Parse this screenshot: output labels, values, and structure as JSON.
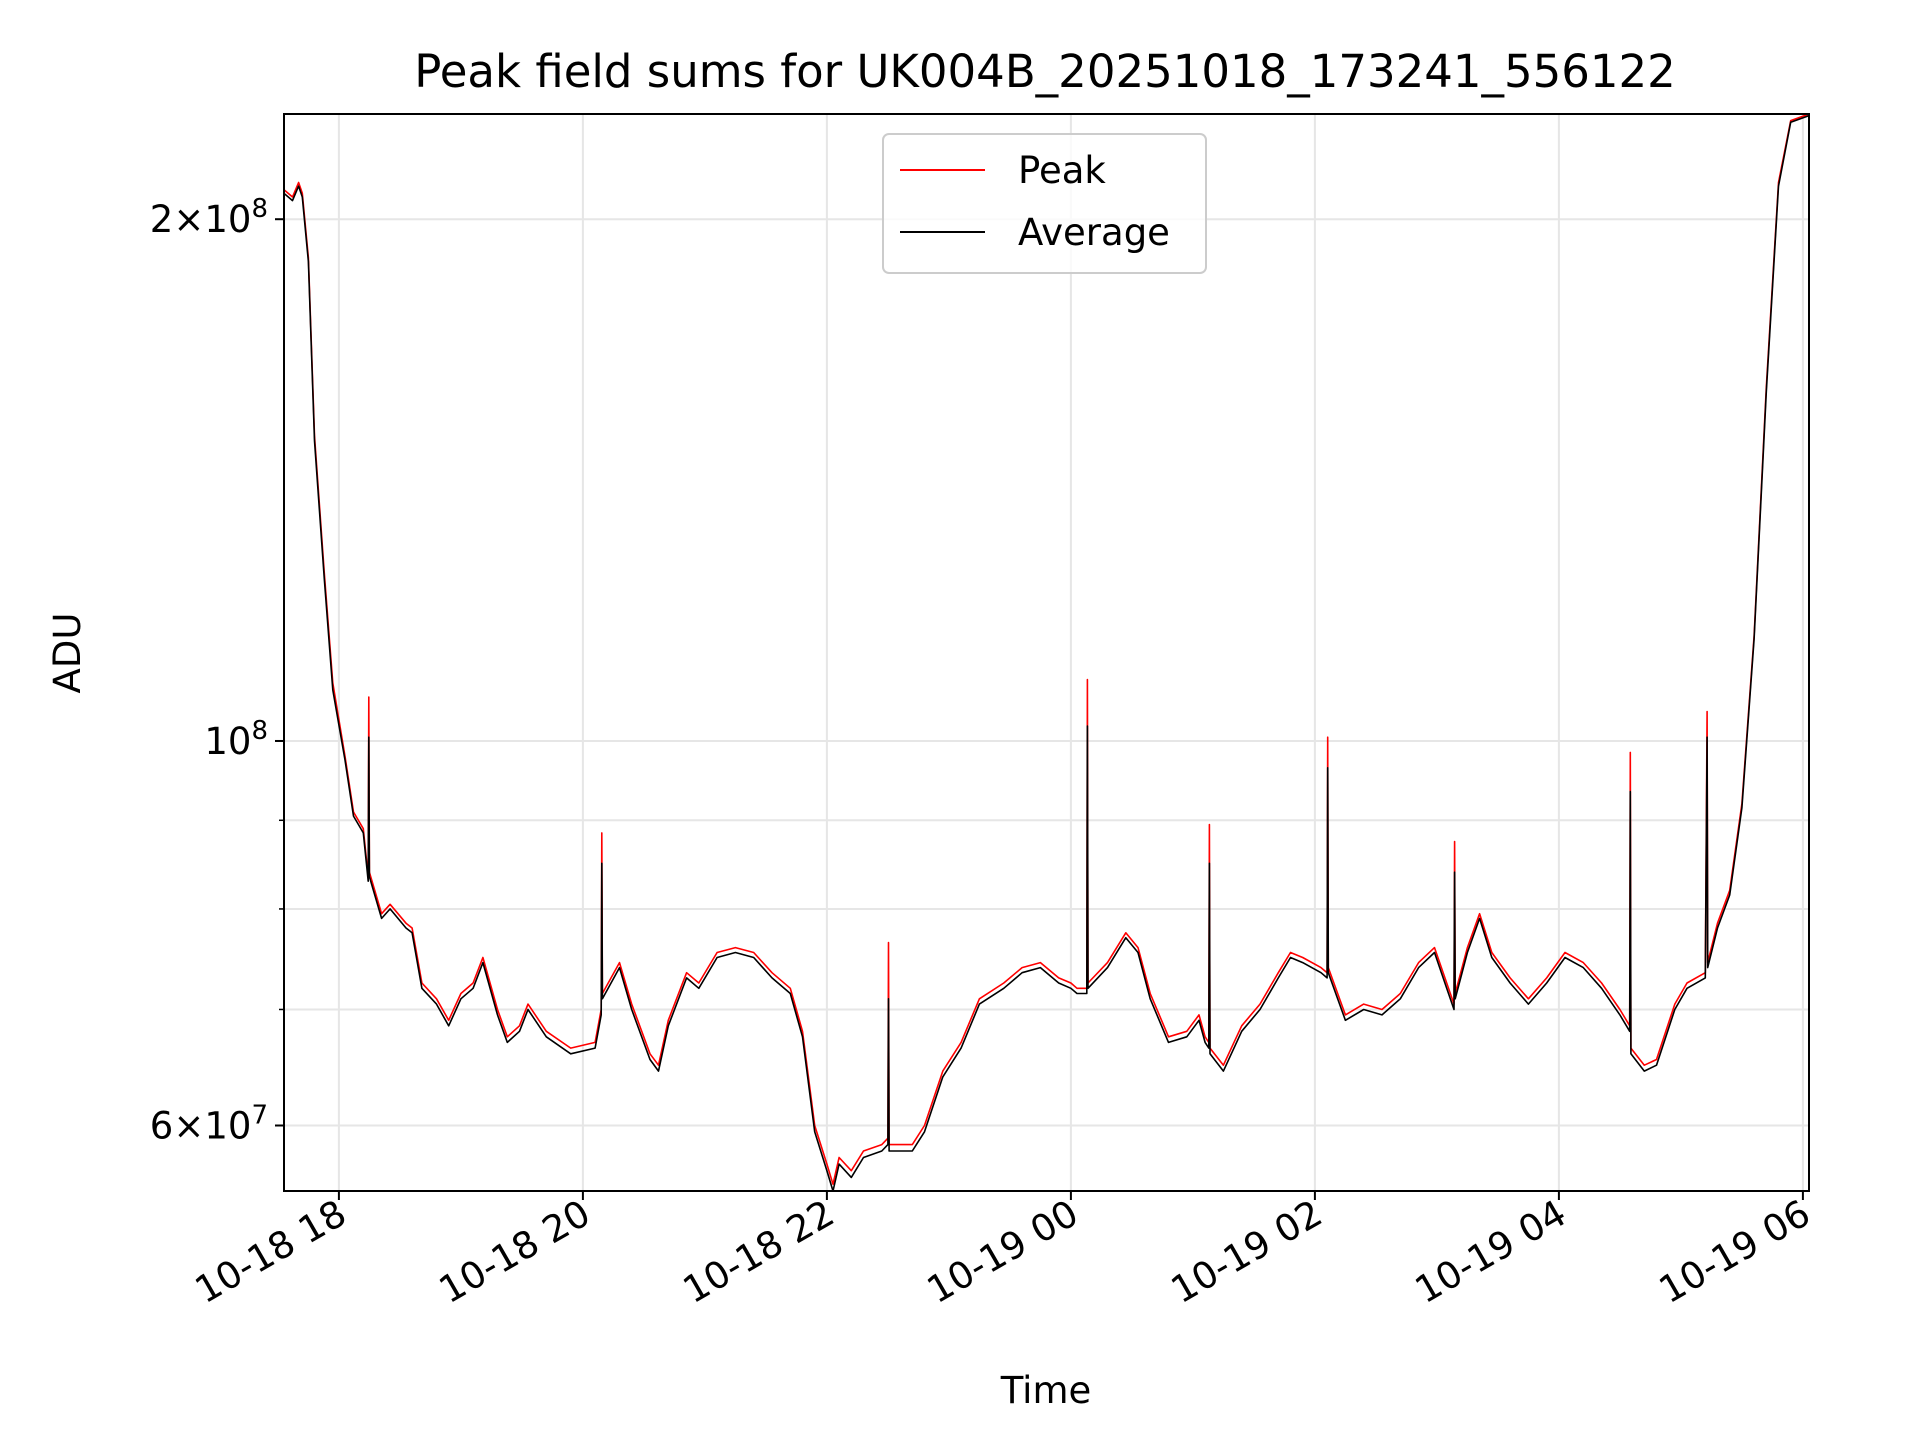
{
  "chart_data": {
    "type": "line",
    "title": "Peak field sums for UK004B_20251018_173241_556122",
    "xlabel": "Time",
    "ylabel": "ADU",
    "y_scale": "log",
    "x_unit": "hours",
    "xlim": [
      17.55,
      30.05
    ],
    "ylim": [
      55000000,
      230000000
    ],
    "x_ticks": [
      {
        "value": 18,
        "label": "10-18 18"
      },
      {
        "value": 20,
        "label": "10-18 20"
      },
      {
        "value": 22,
        "label": "10-18 22"
      },
      {
        "value": 24,
        "label": "10-19 00"
      },
      {
        "value": 26,
        "label": "10-19 02"
      },
      {
        "value": 28,
        "label": "10-19 04"
      },
      {
        "value": 30,
        "label": "10-19 06"
      }
    ],
    "y_ticks_major": [
      {
        "value": 100000000,
        "base": "10",
        "exp": "8",
        "mantissa": ""
      },
      {
        "value": 200000000,
        "base": "10",
        "exp": "8",
        "mantissa": "2"
      },
      {
        "value": 60000000,
        "base": "10",
        "exp": "7",
        "mantissa": "6"
      }
    ],
    "y_ticks_minor": [
      70000000,
      80000000,
      90000000
    ],
    "grid": true,
    "legend": {
      "position": "upper center"
    },
    "series": [
      {
        "name": "Peak",
        "color": "#ff0000",
        "points": [
          [
            17.55,
            208000000
          ],
          [
            17.62,
            206000000
          ],
          [
            17.67,
            210000000
          ],
          [
            17.7,
            207000000
          ],
          [
            17.75,
            190000000
          ],
          [
            17.8,
            150000000
          ],
          [
            17.88,
            125000000
          ],
          [
            17.95,
            108000000
          ],
          [
            18.05,
            98000000
          ],
          [
            18.12,
            91000000
          ],
          [
            18.2,
            89000000
          ],
          [
            18.24,
            83500000
          ],
          [
            18.245,
            106000000
          ],
          [
            18.25,
            84000000
          ],
          [
            18.35,
            79500000
          ],
          [
            18.42,
            80500000
          ],
          [
            18.55,
            78500000
          ],
          [
            18.6,
            78000000
          ],
          [
            18.68,
            72500000
          ],
          [
            18.8,
            71000000
          ],
          [
            18.9,
            69000000
          ],
          [
            19.0,
            71500000
          ],
          [
            19.1,
            72500000
          ],
          [
            19.18,
            75000000
          ],
          [
            19.3,
            70000000
          ],
          [
            19.38,
            67500000
          ],
          [
            19.48,
            68500000
          ],
          [
            19.55,
            70500000
          ],
          [
            19.7,
            68000000
          ],
          [
            19.9,
            66500000
          ],
          [
            20.1,
            67000000
          ],
          [
            20.15,
            70000000
          ],
          [
            20.155,
            88500000
          ],
          [
            20.16,
            71500000
          ],
          [
            20.3,
            74500000
          ],
          [
            20.4,
            70500000
          ],
          [
            20.55,
            66000000
          ],
          [
            20.62,
            65000000
          ],
          [
            20.7,
            69000000
          ],
          [
            20.85,
            73500000
          ],
          [
            20.95,
            72500000
          ],
          [
            21.1,
            75500000
          ],
          [
            21.25,
            76000000
          ],
          [
            21.4,
            75500000
          ],
          [
            21.55,
            73500000
          ],
          [
            21.7,
            72000000
          ],
          [
            21.8,
            68000000
          ],
          [
            21.9,
            60000000
          ],
          [
            22.0,
            57000000
          ],
          [
            22.05,
            55500000
          ],
          [
            22.1,
            57500000
          ],
          [
            22.2,
            56500000
          ],
          [
            22.3,
            58000000
          ],
          [
            22.45,
            58500000
          ],
          [
            22.5,
            59000000
          ],
          [
            22.505,
            76500000
          ],
          [
            22.51,
            58500000
          ],
          [
            22.7,
            58500000
          ],
          [
            22.8,
            60000000
          ],
          [
            22.95,
            64500000
          ],
          [
            23.1,
            67000000
          ],
          [
            23.25,
            71000000
          ],
          [
            23.45,
            72500000
          ],
          [
            23.6,
            74000000
          ],
          [
            23.75,
            74500000
          ],
          [
            23.9,
            73000000
          ],
          [
            24.0,
            72500000
          ],
          [
            24.05,
            72000000
          ],
          [
            24.13,
            72000000
          ],
          [
            24.135,
            108500000
          ],
          [
            24.14,
            72500000
          ],
          [
            24.3,
            74500000
          ],
          [
            24.45,
            77500000
          ],
          [
            24.55,
            76000000
          ],
          [
            24.65,
            71500000
          ],
          [
            24.8,
            67500000
          ],
          [
            24.95,
            68000000
          ],
          [
            25.05,
            69500000
          ],
          [
            25.1,
            67500000
          ],
          [
            25.13,
            67000000
          ],
          [
            25.135,
            89500000
          ],
          [
            25.14,
            66500000
          ],
          [
            25.25,
            65000000
          ],
          [
            25.4,
            68500000
          ],
          [
            25.55,
            70500000
          ],
          [
            25.7,
            73500000
          ],
          [
            25.8,
            75500000
          ],
          [
            25.9,
            75000000
          ],
          [
            26.05,
            74000000
          ],
          [
            26.1,
            73500000
          ],
          [
            26.105,
            100500000
          ],
          [
            26.11,
            74000000
          ],
          [
            26.25,
            69500000
          ],
          [
            26.4,
            70500000
          ],
          [
            26.55,
            70000000
          ],
          [
            26.7,
            71500000
          ],
          [
            26.85,
            74500000
          ],
          [
            26.98,
            76000000
          ],
          [
            27.08,
            72500000
          ],
          [
            27.14,
            70500000
          ],
          [
            27.145,
            87500000
          ],
          [
            27.15,
            71500000
          ],
          [
            27.25,
            76000000
          ],
          [
            27.35,
            79500000
          ],
          [
            27.45,
            75500000
          ],
          [
            27.6,
            73000000
          ],
          [
            27.75,
            71000000
          ],
          [
            27.9,
            73000000
          ],
          [
            28.05,
            75500000
          ],
          [
            28.2,
            74500000
          ],
          [
            28.35,
            72500000
          ],
          [
            28.5,
            70000000
          ],
          [
            28.58,
            68500000
          ],
          [
            28.585,
            98500000
          ],
          [
            28.59,
            66500000
          ],
          [
            28.7,
            65000000
          ],
          [
            28.8,
            65500000
          ],
          [
            28.95,
            70500000
          ],
          [
            29.05,
            72500000
          ],
          [
            29.2,
            73500000
          ],
          [
            29.215,
            104000000
          ],
          [
            29.22,
            74500000
          ],
          [
            29.3,
            78500000
          ],
          [
            29.4,
            82000000
          ],
          [
            29.5,
            92000000
          ],
          [
            29.6,
            115000000
          ],
          [
            29.7,
            160000000
          ],
          [
            29.8,
            210000000
          ],
          [
            29.9,
            228000000
          ],
          [
            30.05,
            230000000
          ]
        ]
      },
      {
        "name": "Average",
        "color": "#000000",
        "points": [
          [
            17.55,
            207000000
          ],
          [
            17.62,
            205000000
          ],
          [
            17.67,
            209000000
          ],
          [
            17.7,
            206000000
          ],
          [
            17.75,
            189000000
          ],
          [
            17.8,
            149000000
          ],
          [
            17.88,
            124000000
          ],
          [
            17.95,
            107000000
          ],
          [
            18.05,
            97500000
          ],
          [
            18.12,
            90500000
          ],
          [
            18.2,
            88500000
          ],
          [
            18.24,
            83000000
          ],
          [
            18.245,
            100500000
          ],
          [
            18.25,
            83500000
          ],
          [
            18.35,
            79000000
          ],
          [
            18.42,
            80000000
          ],
          [
            18.55,
            78000000
          ],
          [
            18.6,
            77500000
          ],
          [
            18.68,
            72000000
          ],
          [
            18.8,
            70500000
          ],
          [
            18.9,
            68500000
          ],
          [
            19.0,
            71000000
          ],
          [
            19.1,
            72000000
          ],
          [
            19.18,
            74500000
          ],
          [
            19.3,
            69500000
          ],
          [
            19.38,
            67000000
          ],
          [
            19.48,
            68000000
          ],
          [
            19.55,
            70000000
          ],
          [
            19.7,
            67500000
          ],
          [
            19.9,
            66000000
          ],
          [
            20.1,
            66500000
          ],
          [
            20.15,
            69500000
          ],
          [
            20.155,
            85000000
          ],
          [
            20.16,
            71000000
          ],
          [
            20.3,
            74000000
          ],
          [
            20.4,
            70000000
          ],
          [
            20.55,
            65500000
          ],
          [
            20.62,
            64500000
          ],
          [
            20.7,
            68500000
          ],
          [
            20.85,
            73000000
          ],
          [
            20.95,
            72000000
          ],
          [
            21.1,
            75000000
          ],
          [
            21.25,
            75500000
          ],
          [
            21.4,
            75000000
          ],
          [
            21.55,
            73000000
          ],
          [
            21.7,
            71500000
          ],
          [
            21.8,
            67500000
          ],
          [
            21.9,
            59500000
          ],
          [
            22.0,
            56500000
          ],
          [
            22.05,
            55000000
          ],
          [
            22.1,
            57000000
          ],
          [
            22.2,
            56000000
          ],
          [
            22.3,
            57500000
          ],
          [
            22.45,
            58000000
          ],
          [
            22.5,
            58500000
          ],
          [
            22.505,
            71000000
          ],
          [
            22.51,
            58000000
          ],
          [
            22.7,
            58000000
          ],
          [
            22.8,
            59500000
          ],
          [
            22.95,
            64000000
          ],
          [
            23.1,
            66500000
          ],
          [
            23.25,
            70500000
          ],
          [
            23.45,
            72000000
          ],
          [
            23.6,
            73500000
          ],
          [
            23.75,
            74000000
          ],
          [
            23.9,
            72500000
          ],
          [
            24.0,
            72000000
          ],
          [
            24.05,
            71500000
          ],
          [
            24.13,
            71500000
          ],
          [
            24.135,
            102000000
          ],
          [
            24.14,
            72000000
          ],
          [
            24.3,
            74000000
          ],
          [
            24.45,
            77000000
          ],
          [
            24.55,
            75500000
          ],
          [
            24.65,
            71000000
          ],
          [
            24.8,
            67000000
          ],
          [
            24.95,
            67500000
          ],
          [
            25.05,
            69000000
          ],
          [
            25.1,
            67000000
          ],
          [
            25.13,
            66500000
          ],
          [
            25.135,
            85000000
          ],
          [
            25.14,
            66000000
          ],
          [
            25.25,
            64500000
          ],
          [
            25.4,
            68000000
          ],
          [
            25.55,
            70000000
          ],
          [
            25.7,
            73000000
          ],
          [
            25.8,
            75000000
          ],
          [
            25.9,
            74500000
          ],
          [
            26.05,
            73500000
          ],
          [
            26.1,
            73000000
          ],
          [
            26.105,
            96500000
          ],
          [
            26.11,
            73500000
          ],
          [
            26.25,
            69000000
          ],
          [
            26.4,
            70000000
          ],
          [
            26.55,
            69500000
          ],
          [
            26.7,
            71000000
          ],
          [
            26.85,
            74000000
          ],
          [
            26.98,
            75500000
          ],
          [
            27.08,
            72000000
          ],
          [
            27.14,
            70000000
          ],
          [
            27.145,
            84000000
          ],
          [
            27.15,
            71000000
          ],
          [
            27.25,
            75500000
          ],
          [
            27.35,
            79000000
          ],
          [
            27.45,
            75000000
          ],
          [
            27.6,
            72500000
          ],
          [
            27.75,
            70500000
          ],
          [
            27.9,
            72500000
          ],
          [
            28.05,
            75000000
          ],
          [
            28.2,
            74000000
          ],
          [
            28.35,
            72000000
          ],
          [
            28.5,
            69500000
          ],
          [
            28.58,
            68000000
          ],
          [
            28.585,
            93500000
          ],
          [
            28.59,
            66000000
          ],
          [
            28.7,
            64500000
          ],
          [
            28.8,
            65000000
          ],
          [
            28.95,
            70000000
          ],
          [
            29.05,
            72000000
          ],
          [
            29.2,
            73000000
          ],
          [
            29.215,
            100500000
          ],
          [
            29.22,
            74000000
          ],
          [
            29.3,
            78000000
          ],
          [
            29.4,
            81500000
          ],
          [
            29.5,
            91500000
          ],
          [
            29.6,
            114500000
          ],
          [
            29.7,
            159000000
          ],
          [
            29.8,
            209000000
          ],
          [
            29.9,
            227500000
          ],
          [
            30.05,
            229500000
          ]
        ]
      }
    ]
  }
}
